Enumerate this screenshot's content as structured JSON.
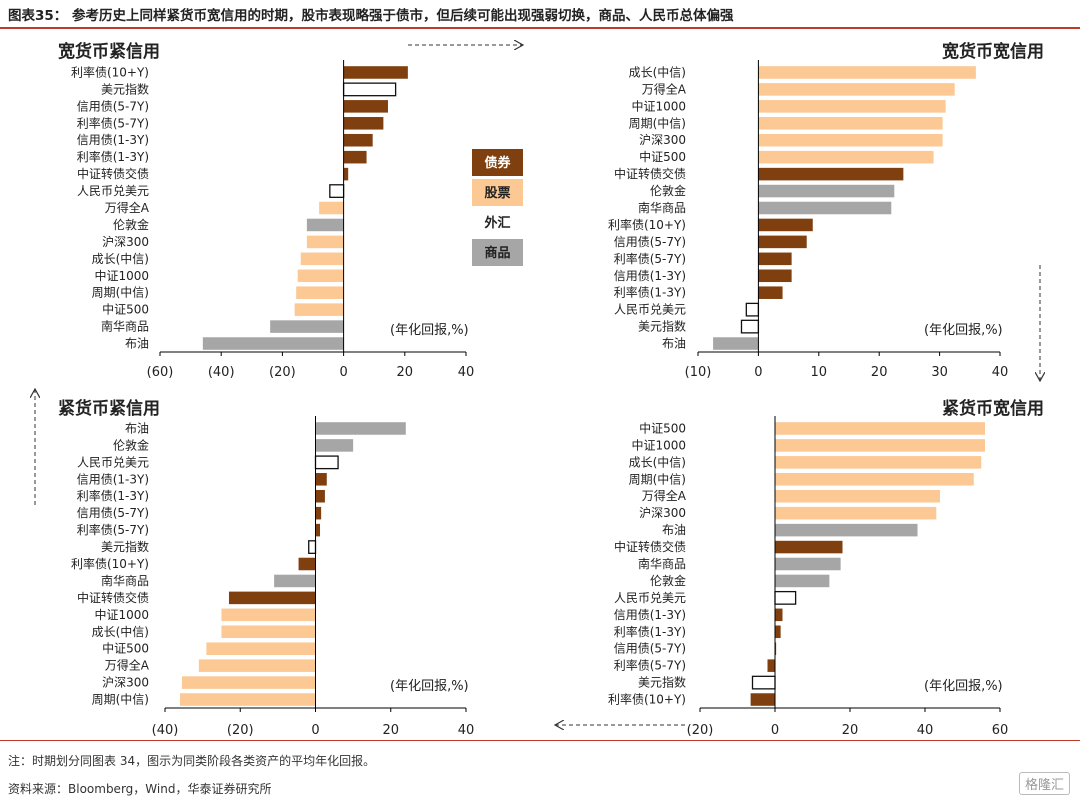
{
  "figure_title": "图表35： 参考历史上同样紧货币宽信用的时期，股市表现略强于债市，但后续可能出现强弱切换，商品、人民币总体偏强",
  "note": "注：时期划分同图表 34，图示为同类阶段各类资产的平均年化回报。",
  "source": "资料来源：Bloomberg，Wind，华泰证券研究所",
  "watermark": "格隆汇",
  "legend": [
    {
      "name": "债券",
      "color": "#7f3f0f",
      "text_color": "#ffffff",
      "style": "fill"
    },
    {
      "name": "股票",
      "color": "#fcc893",
      "text_color": "#222222",
      "style": "fill"
    },
    {
      "name": "外汇",
      "color": "#ffffff",
      "text_color": "#222222",
      "style": "plain"
    },
    {
      "name": "商品",
      "color": "#a6a6a6",
      "text_color": "#222222",
      "style": "fill"
    }
  ],
  "colors": {
    "bond": "#7f3f0f",
    "equity": "#fcc893",
    "fx": "#ffffff",
    "commodity": "#a6a6a6",
    "accent": "#c0392b"
  },
  "chart_data": [
    {
      "type": "bar",
      "orientation": "horizontal",
      "title": "宽货币紧信用",
      "unit": "(年化回报,%)",
      "xlim": [
        -60,
        40
      ],
      "ticks": [
        -60,
        -40,
        -20,
        0,
        20,
        40
      ],
      "tick_labels": [
        "(60)",
        "(40)",
        "(20)",
        "0",
        "20",
        "40"
      ],
      "categories": [
        "利率债(10+Y)",
        "美元指数",
        "信用债(5-7Y)",
        "利率债(5-7Y)",
        "信用债(1-3Y)",
        "利率债(1-3Y)",
        "中证转债交债",
        "人民币兑美元",
        "万得全A",
        "伦敦金",
        "沪深300",
        "成长(中信)",
        "中证1000",
        "周期(中信)",
        "中证500",
        "南华商品",
        "布油"
      ],
      "values": [
        21,
        17,
        14.5,
        13,
        9.5,
        7.5,
        1.5,
        -4.5,
        -8,
        -12,
        -12,
        -14,
        -15,
        -15.5,
        -16,
        -24,
        -46
      ],
      "asset_class": [
        "bond",
        "fx",
        "bond",
        "bond",
        "bond",
        "bond",
        "bond",
        "fx",
        "equity",
        "commodity",
        "equity",
        "equity",
        "equity",
        "equity",
        "equity",
        "commodity",
        "commodity"
      ]
    },
    {
      "type": "bar",
      "orientation": "horizontal",
      "title": "宽货币宽信用",
      "unit": "(年化回报,%)",
      "xlim": [
        -10,
        40
      ],
      "ticks": [
        -10,
        0,
        10,
        20,
        30,
        40
      ],
      "tick_labels": [
        "(10)",
        "0",
        "10",
        "20",
        "30",
        "40"
      ],
      "categories": [
        "成长(中信)",
        "万得全A",
        "中证1000",
        "周期(中信)",
        "沪深300",
        "中证500",
        "中证转债交债",
        "伦敦金",
        "南华商品",
        "利率债(10+Y)",
        "信用债(5-7Y)",
        "利率债(5-7Y)",
        "信用债(1-3Y)",
        "利率债(1-3Y)",
        "人民币兑美元",
        "美元指数",
        "布油"
      ],
      "values": [
        36,
        32.5,
        31,
        30.5,
        30.5,
        29,
        24,
        22.5,
        22,
        9,
        8,
        5.5,
        5.5,
        4,
        -2,
        -2.8,
        -7.5
      ],
      "asset_class": [
        "equity",
        "equity",
        "equity",
        "equity",
        "equity",
        "equity",
        "bond",
        "commodity",
        "commodity",
        "bond",
        "bond",
        "bond",
        "bond",
        "bond",
        "fx",
        "fx",
        "commodity"
      ]
    },
    {
      "type": "bar",
      "orientation": "horizontal",
      "title": "紧货币紧信用",
      "unit": "(年化回报,%)",
      "xlim": [
        -40,
        40
      ],
      "ticks": [
        -40,
        -20,
        0,
        20,
        40
      ],
      "tick_labels": [
        "(40)",
        "(20)",
        "0",
        "20",
        "40"
      ],
      "categories": [
        "布油",
        "伦敦金",
        "人民币兑美元",
        "信用债(1-3Y)",
        "利率债(1-3Y)",
        "信用债(5-7Y)",
        "利率债(5-7Y)",
        "美元指数",
        "利率债(10+Y)",
        "南华商品",
        "中证转债交债",
        "中证1000",
        "成长(中信)",
        "中证500",
        "万得全A",
        "沪深300",
        "周期(中信)"
      ],
      "values": [
        24,
        10,
        6,
        3,
        2.5,
        1.5,
        1.2,
        -1.8,
        -4.5,
        -11,
        -23,
        -25,
        -25,
        -29,
        -31,
        -35.5,
        -36
      ],
      "asset_class": [
        "commodity",
        "commodity",
        "fx",
        "bond",
        "bond",
        "bond",
        "bond",
        "fx",
        "bond",
        "commodity",
        "bond",
        "equity",
        "equity",
        "equity",
        "equity",
        "equity",
        "equity"
      ]
    },
    {
      "type": "bar",
      "orientation": "horizontal",
      "title": "紧货币宽信用",
      "unit": "(年化回报,%)",
      "xlim": [
        -20,
        60
      ],
      "ticks": [
        -20,
        0,
        20,
        40,
        60
      ],
      "tick_labels": [
        "(20)",
        "0",
        "20",
        "40",
        "60"
      ],
      "categories": [
        "中证500",
        "中证1000",
        "成长(中信)",
        "周期(中信)",
        "万得全A",
        "沪深300",
        "布油",
        "中证转债交债",
        "南华商品",
        "伦敦金",
        "人民币兑美元",
        "信用债(1-3Y)",
        "利率债(1-3Y)",
        "信用债(5-7Y)",
        "利率债(5-7Y)",
        "美元指数",
        "利率债(10+Y)"
      ],
      "values": [
        56,
        56,
        55,
        53,
        44,
        43,
        38,
        18,
        17.5,
        14.5,
        5.5,
        2,
        1.5,
        0.3,
        -2,
        -6,
        -6.5
      ],
      "asset_class": [
        "equity",
        "equity",
        "equity",
        "equity",
        "equity",
        "equity",
        "commodity",
        "bond",
        "commodity",
        "commodity",
        "fx",
        "bond",
        "bond",
        "bond",
        "bond",
        "fx",
        "bond"
      ]
    }
  ]
}
